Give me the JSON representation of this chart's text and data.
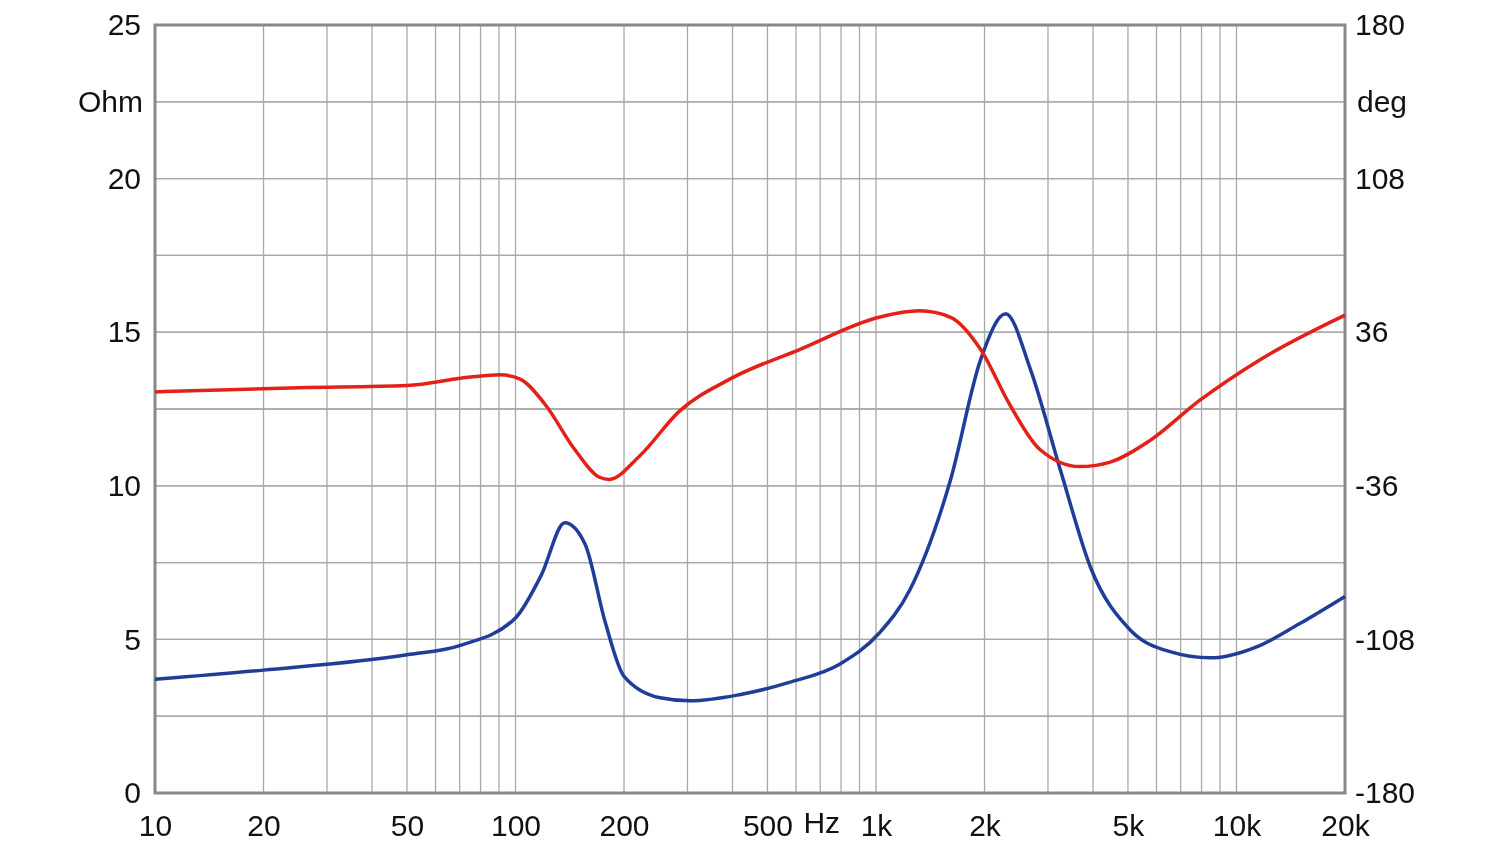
{
  "chart_data": {
    "type": "line",
    "xlabel": "Hz",
    "ylabel": "Ohm",
    "y2label": "deg",
    "log": "x",
    "grid": true,
    "marker": "none",
    "line_style": "solid",
    "xlim": [
      10,
      20000
    ],
    "xticks": [
      10,
      20,
      {
        "value": 30,
        "label": null
      },
      {
        "value": 40,
        "label": null
      },
      50,
      {
        "value": 60,
        "label": null
      },
      {
        "value": 70,
        "label": null
      },
      {
        "value": 80,
        "label": null
      },
      {
        "value": 90,
        "label": null
      },
      100,
      200,
      {
        "value": 300,
        "label": null
      },
      {
        "value": 400,
        "label": null
      },
      500,
      {
        "value": 600,
        "label": null
      },
      {
        "value": 700,
        "label": null
      },
      {
        "value": 800,
        "label": null
      },
      {
        "value": 900,
        "label": null
      },
      {
        "value": 1000,
        "label": "1k"
      },
      {
        "value": 2000,
        "label": "2k"
      },
      {
        "value": 3000,
        "label": null
      },
      {
        "value": 4000,
        "label": null
      },
      {
        "value": 5000,
        "label": "5k"
      },
      {
        "value": 6000,
        "label": null
      },
      {
        "value": 7000,
        "label": null
      },
      {
        "value": 8000,
        "label": null
      },
      {
        "value": 9000,
        "label": null
      },
      {
        "value": 10000,
        "label": "10k"
      },
      {
        "value": 20000,
        "label": "20k"
      }
    ],
    "ylim": [
      0,
      25
    ],
    "yticks": [
      0,
      {
        "value": 2.5,
        "label": null
      },
      5,
      {
        "value": 7.5,
        "label": null
      },
      10,
      {
        "value": 12.5,
        "label": null
      },
      15,
      {
        "value": 17.5,
        "label": null
      },
      20,
      {
        "value": 22.5,
        "label": null
      },
      25
    ],
    "y2lim": [
      -180,
      180
    ],
    "y2ticks": [
      -180,
      {
        "value": -144,
        "label": null
      },
      -108,
      {
        "value": -72,
        "label": null
      },
      -36,
      {
        "value": 0,
        "label": null
      },
      36,
      {
        "value": 72,
        "label": null
      },
      108,
      {
        "value": 144,
        "label": null
      },
      180
    ],
    "series": [
      {
        "color": "#1f3d99",
        "x": [
          10,
          20,
          50,
          70,
          100,
          118,
          137,
          156,
          177,
          200,
          252,
          305,
          418,
          575,
          795,
          1020,
          1240,
          1610,
          1950,
          2290,
          2680,
          3250,
          3950,
          5080,
          6540,
          8450,
          11600,
          14900,
          20000
        ],
        "values": [
          3.7,
          4.0,
          4.5,
          4.8,
          5.7,
          7.1,
          8.8,
          8.1,
          5.6,
          3.8,
          3.1,
          3.0,
          3.2,
          3.6,
          4.2,
          5.2,
          6.6,
          10.2,
          14.1,
          15.6,
          13.8,
          10.5,
          7.3,
          5.3,
          4.6,
          4.4,
          4.8,
          5.5,
          6.4
        ]
      },
      {
        "color": "#e32119",
        "axis": "y2",
        "x": [
          10,
          25,
          50,
          75,
          91,
          103,
          121,
          146,
          171,
          182,
          221,
          285,
          393,
          616,
          1020,
          1320,
          1610,
          1950,
          2350,
          2850,
          3670,
          4440,
          5730,
          7900,
          11600,
          20000
        ],
        "values": [
          8,
          10,
          11,
          15,
          16,
          14,
          2,
          -19,
          -32,
          -33,
          -22,
          -1,
          14,
          28,
          43,
          46,
          43,
          28,
          2,
          -19,
          -27,
          -25,
          -15,
          4,
          23,
          44
        ]
      }
    ]
  }
}
